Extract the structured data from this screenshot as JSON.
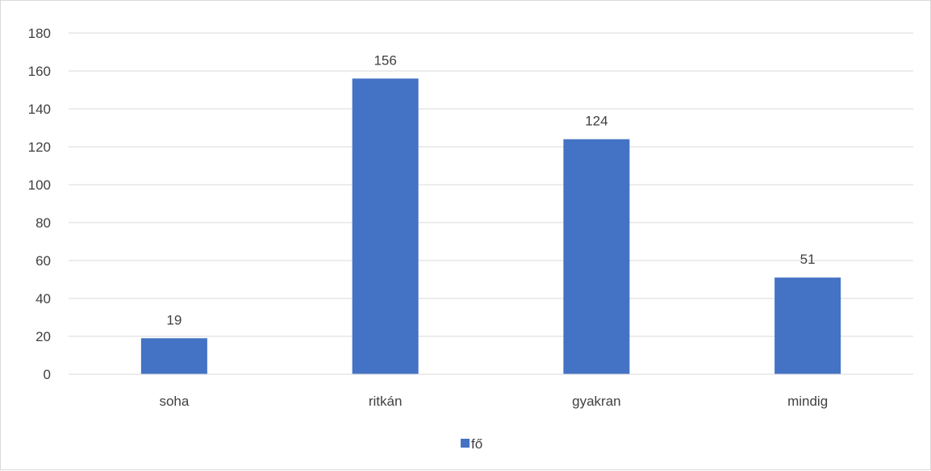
{
  "chart_data": {
    "type": "bar",
    "categories": [
      "soha",
      "ritkán",
      "gyakran",
      "mindig"
    ],
    "series": [
      {
        "name": "fő",
        "values": [
          19,
          156,
          124,
          51
        ],
        "color": "#4472c4"
      }
    ],
    "title": "",
    "xlabel": "",
    "ylabel": "",
    "ylim": [
      0,
      180
    ],
    "yticks": [
      0,
      20,
      40,
      60,
      80,
      100,
      120,
      140,
      160,
      180
    ],
    "grid": true,
    "legend": "bottom",
    "data_labels": true
  }
}
